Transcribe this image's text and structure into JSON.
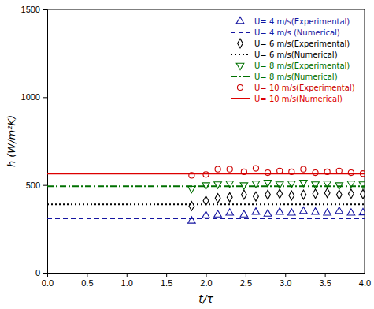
{
  "chart_data": {
    "type": "scatter",
    "xlabel": "t/τ",
    "ylabel": "h (W/m²K)",
    "xlim": [
      0,
      4
    ],
    "ylim": [
      0,
      1500
    ],
    "xticks": [
      {
        "value": 0,
        "label": "0.0"
      },
      0.5,
      {
        "value": 1,
        "label": "1.0"
      },
      1.5,
      {
        "value": 2,
        "label": "2.0"
      },
      2.5,
      {
        "value": 3,
        "label": "3.0"
      },
      3.5,
      {
        "value": 4,
        "label": "4.0"
      }
    ],
    "yticks": [
      0,
      500,
      1000,
      1500
    ],
    "grid": false,
    "legend": "upper right",
    "series": [
      {
        "name": "U= 4 m/s(Experimental)",
        "type": "scatter",
        "color": "#1515A0",
        "marker": "triangle-up",
        "x": [
          1.82,
          2.0,
          2.15,
          2.3,
          2.48,
          2.63,
          2.78,
          2.93,
          3.08,
          3.23,
          3.38,
          3.53,
          3.68,
          3.83,
          3.98
        ],
        "values": [
          295,
          325,
          330,
          340,
          330,
          345,
          335,
          345,
          340,
          350,
          345,
          340,
          350,
          340,
          342
        ]
      },
      {
        "name": "U= 4 m/s (Numerical)",
        "type": "line",
        "color": "#1515A0",
        "line_style": "dashed",
        "x": [
          0,
          4
        ],
        "values": [
          310,
          310
        ]
      },
      {
        "name": "U= 6 m/s(Experimental)",
        "type": "scatter",
        "color": "#000000",
        "marker": "diamond",
        "x": [
          1.82,
          2.0,
          2.15,
          2.3,
          2.48,
          2.63,
          2.78,
          2.93,
          3.08,
          3.23,
          3.38,
          3.53,
          3.68,
          3.83,
          3.98
        ],
        "values": [
          380,
          410,
          425,
          430,
          445,
          435,
          445,
          450,
          440,
          445,
          450,
          455,
          445,
          450,
          448
        ]
      },
      {
        "name": "U= 6 m/s(Numerical)",
        "type": "line",
        "color": "#000000",
        "line_style": "dotted",
        "x": [
          0,
          4
        ],
        "values": [
          390,
          390
        ]
      },
      {
        "name": "U= 8 m/s(Experimental)",
        "type": "scatter",
        "color": "#007000",
        "marker": "triangle-down",
        "x": [
          1.82,
          2.0,
          2.15,
          2.3,
          2.48,
          2.63,
          2.78,
          2.93,
          3.08,
          3.23,
          3.38,
          3.53,
          3.68,
          3.83,
          3.98
        ],
        "values": [
          480,
          500,
          505,
          510,
          500,
          510,
          515,
          505,
          510,
          515,
          505,
          510,
          500,
          510,
          505
        ]
      },
      {
        "name": "U= 8 m/s(Numerical)",
        "type": "line",
        "color": "#007000",
        "line_style": "dashdot",
        "x": [
          0,
          4
        ],
        "values": [
          493,
          493
        ]
      },
      {
        "name": "U= 10 m/s(Experimental)",
        "type": "scatter",
        "color": "#CC0000",
        "marker": "circle",
        "x": [
          1.82,
          2.0,
          2.15,
          2.3,
          2.48,
          2.63,
          2.78,
          2.93,
          3.08,
          3.23,
          3.38,
          3.53,
          3.68,
          3.83,
          3.98
        ],
        "values": [
          555,
          560,
          590,
          590,
          575,
          595,
          570,
          580,
          575,
          590,
          570,
          575,
          580,
          570,
          565
        ]
      },
      {
        "name": "U= 10 m/s(Numerical)",
        "type": "line",
        "color": "#DD0000",
        "line_style": "solid",
        "x": [
          0,
          4
        ],
        "values": [
          565,
          565
        ]
      }
    ]
  }
}
